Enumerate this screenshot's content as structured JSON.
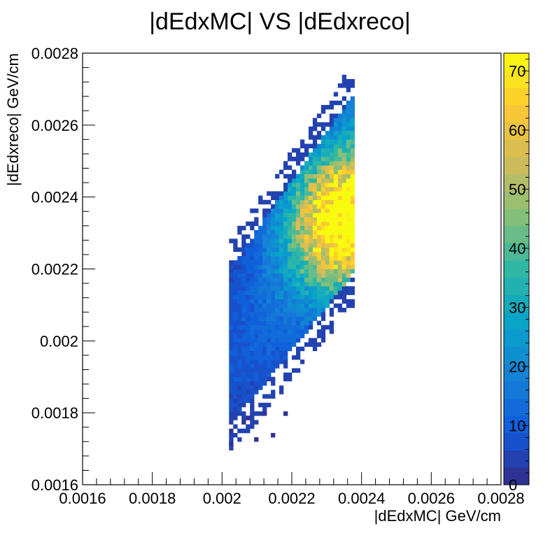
{
  "chart_data": {
    "type": "heatmap",
    "title": "|dEdxMC| VS |dEdxreco|",
    "xlabel": "|dEdxMC| GeV/cm",
    "ylabel": "|dEdxreco| GeV/cm",
    "xlim": [
      0.0016,
      0.0028
    ],
    "ylim": [
      0.0016,
      0.0028
    ],
    "x_tick_values": [
      0.0016,
      0.0018,
      0.002,
      0.0022,
      0.0024,
      0.0026,
      0.0028
    ],
    "x_tick_labels": [
      "0.0016",
      "0.0018",
      "0.002",
      "0.0022",
      "0.0024",
      "0.0026",
      "0.0028"
    ],
    "y_tick_values": [
      0.0016,
      0.0018,
      0.002,
      0.0022,
      0.0024,
      0.0026,
      0.0028
    ],
    "y_tick_labels": [
      "0.0016",
      "0.0018",
      "0.002",
      "0.0022",
      "0.0024",
      "0.0026",
      "0.0028"
    ],
    "colorbar": {
      "min": 0,
      "max": 73,
      "tick_values": [
        0,
        10,
        20,
        30,
        40,
        50,
        60,
        70
      ],
      "tick_labels": [
        "0",
        "10",
        "20",
        "30",
        "40",
        "50",
        "60",
        "70"
      ]
    },
    "bins": {
      "x_min": 0.0016,
      "x_max": 0.0028,
      "nx": 100,
      "y_min": 0.0016,
      "y_max": 0.0028,
      "ny": 100
    },
    "distribution": {
      "description_free_params": true,
      "x_support": [
        0.00202,
        0.00238
      ],
      "y_support": [
        0.00171,
        0.00278
      ],
      "peak_x": 0.002355,
      "peak_y": 0.00233,
      "peak_count": 68
    },
    "grid": false,
    "legend": "none"
  },
  "colors": {
    "palette": [
      "#352a87",
      "#0f5cdd",
      "#1481d6",
      "#06a4ca",
      "#2eb7a4",
      "#87bf77",
      "#d1bb59",
      "#fec832",
      "#f9fb0e"
    ]
  }
}
